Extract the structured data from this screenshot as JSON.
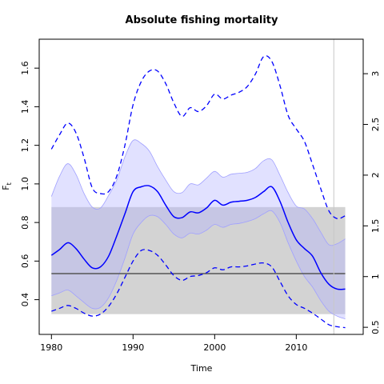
{
  "chart_data": {
    "type": "line",
    "title": "Absolute fishing mortality",
    "xlabel": "Time",
    "ylabel": "F",
    "ylabel_sub": "t",
    "xlim": [
      1978.5,
      2018.2
    ],
    "ylim": [
      0.22,
      1.75
    ],
    "y2lim": [
      0.43,
      3.34
    ],
    "xticks": [
      1980,
      1990,
      2000,
      2010
    ],
    "yticks": [
      0.4,
      0.6,
      0.8,
      1.0,
      1.2,
      1.4,
      1.6
    ],
    "ytick_labels": [
      "0.4",
      "0.6",
      "0.8",
      "1.0",
      "1.2",
      "1.4",
      "1.6"
    ],
    "y2ticks": [
      0.5,
      1,
      1.5,
      2,
      2.5,
      3
    ],
    "y2tick_labels": [
      "0.5",
      "1",
      "1.5",
      "2",
      "2.5",
      "3"
    ],
    "reference_line_x": 2014.6,
    "reference_band": {
      "x": [
        1980,
        2016
      ],
      "lower": 0.325,
      "upper": 0.88,
      "mid": 0.535
    },
    "colors": {
      "estimate": "#0000ff",
      "ci_fill": "#b0b0ff",
      "band_fill": "#d3d3d3",
      "band_line": "#555555",
      "vline": "#c8c8c8"
    },
    "series": [
      {
        "role": "estimate",
        "x": [
          1980,
          1981,
          1982,
          1983,
          1984,
          1985,
          1986,
          1987,
          1988,
          1989,
          1990,
          1991,
          1992,
          1993,
          1994,
          1995,
          1996,
          1997,
          1998,
          1999,
          2000,
          2001,
          2002,
          2003,
          2004,
          2005,
          2006,
          2007,
          2008,
          2009,
          2010,
          2011,
          2012,
          2013,
          2014,
          2015,
          2016
        ],
        "values": [
          0.63,
          0.66,
          0.695,
          0.665,
          0.61,
          0.565,
          0.57,
          0.625,
          0.73,
          0.845,
          0.96,
          0.985,
          0.99,
          0.96,
          0.89,
          0.83,
          0.825,
          0.855,
          0.85,
          0.875,
          0.915,
          0.89,
          0.905,
          0.91,
          0.915,
          0.93,
          0.96,
          0.985,
          0.91,
          0.8,
          0.71,
          0.665,
          0.625,
          0.54,
          0.48,
          0.455,
          0.455
        ]
      },
      {
        "role": "ci_upper",
        "x": [
          1980,
          1981,
          1982,
          1983,
          1984,
          1985,
          1986,
          1987,
          1988,
          1989,
          1990,
          1991,
          1992,
          1993,
          1994,
          1995,
          1996,
          1997,
          1998,
          1999,
          2000,
          2001,
          2002,
          2003,
          2004,
          2005,
          2006,
          2007,
          2008,
          2009,
          2010,
          2011,
          2012,
          2013,
          2014,
          2015,
          2016
        ],
        "values": [
          0.935,
          1.04,
          1.105,
          1.05,
          0.95,
          0.88,
          0.875,
          0.94,
          1.02,
          1.14,
          1.225,
          1.21,
          1.17,
          1.09,
          1.02,
          0.96,
          0.955,
          1.0,
          0.995,
          1.03,
          1.065,
          1.035,
          1.05,
          1.055,
          1.06,
          1.08,
          1.12,
          1.125,
          1.045,
          0.955,
          0.885,
          0.87,
          0.82,
          0.75,
          0.685,
          0.69,
          0.715
        ]
      },
      {
        "role": "ci_lower",
        "x": [
          1980,
          1981,
          1982,
          1983,
          1984,
          1985,
          1986,
          1987,
          1988,
          1989,
          1990,
          1991,
          1992,
          1993,
          1994,
          1995,
          1996,
          1997,
          1998,
          1999,
          2000,
          2001,
          2002,
          2003,
          2004,
          2005,
          2006,
          2007,
          2008,
          2009,
          2010,
          2011,
          2012,
          2013,
          2014,
          2015,
          2016
        ],
        "values": [
          0.42,
          0.435,
          0.45,
          0.42,
          0.385,
          0.355,
          0.36,
          0.41,
          0.5,
          0.615,
          0.74,
          0.8,
          0.835,
          0.83,
          0.79,
          0.74,
          0.72,
          0.745,
          0.74,
          0.76,
          0.79,
          0.775,
          0.79,
          0.795,
          0.805,
          0.82,
          0.845,
          0.86,
          0.8,
          0.695,
          0.6,
          0.52,
          0.465,
          0.395,
          0.34,
          0.315,
          0.3
        ]
      },
      {
        "role": "outer_upper_dashed",
        "x": [
          1980,
          1981,
          1982,
          1983,
          1984,
          1985,
          1986,
          1987,
          1988,
          1989,
          1990,
          1991,
          1992,
          1993,
          1994,
          1995,
          1996,
          1997,
          1998,
          1999,
          2000,
          2001,
          2002,
          2003,
          2004,
          2005,
          2006,
          2007,
          2008,
          2009,
          2010,
          2011,
          2012,
          2013,
          2014,
          2015,
          2016
        ],
        "values": [
          1.18,
          1.255,
          1.315,
          1.265,
          1.135,
          0.98,
          0.95,
          0.96,
          1.04,
          1.2,
          1.41,
          1.53,
          1.585,
          1.585,
          1.52,
          1.42,
          1.35,
          1.395,
          1.375,
          1.405,
          1.465,
          1.44,
          1.46,
          1.475,
          1.505,
          1.57,
          1.66,
          1.635,
          1.51,
          1.355,
          1.285,
          1.22,
          1.1,
          0.975,
          0.86,
          0.82,
          0.835
        ]
      },
      {
        "role": "outer_lower_dashed",
        "x": [
          1980,
          1981,
          1982,
          1983,
          1984,
          1985,
          1986,
          1987,
          1988,
          1989,
          1990,
          1991,
          1992,
          1993,
          1994,
          1995,
          1996,
          1997,
          1998,
          1999,
          2000,
          2001,
          2002,
          2003,
          2004,
          2005,
          2006,
          2007,
          2008,
          2009,
          2010,
          2011,
          2012,
          2013,
          2014,
          2015,
          2016
        ],
        "values": [
          0.34,
          0.355,
          0.37,
          0.355,
          0.33,
          0.315,
          0.325,
          0.365,
          0.43,
          0.515,
          0.6,
          0.655,
          0.655,
          0.63,
          0.58,
          0.525,
          0.5,
          0.52,
          0.525,
          0.54,
          0.565,
          0.555,
          0.57,
          0.57,
          0.575,
          0.585,
          0.59,
          0.57,
          0.495,
          0.42,
          0.375,
          0.355,
          0.33,
          0.3,
          0.27,
          0.26,
          0.255
        ]
      }
    ]
  }
}
